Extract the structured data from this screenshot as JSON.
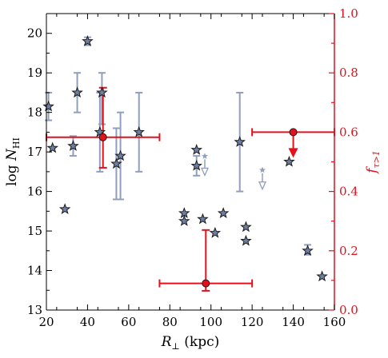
{
  "chart_data": {
    "type": "scatter",
    "xlabel": "R⊥ (kpc)",
    "ylabel_left": "log NHI",
    "ylabel_right": "fτ>1",
    "xlim": [
      20,
      160
    ],
    "ylim_left": [
      13,
      20.5
    ],
    "ylim_right": [
      0.0,
      1.0
    ],
    "x_ticks": [
      "20",
      "40",
      "60",
      "80",
      "100",
      "120",
      "140",
      "160"
    ],
    "y_ticks_left": [
      "13",
      "14",
      "15",
      "16",
      "17",
      "18",
      "19",
      "20"
    ],
    "y_ticks_right": [
      "0.0",
      "0.2",
      "0.4",
      "0.6",
      "0.8",
      "1.0"
    ],
    "colors": {
      "stars": "#8f9fbd",
      "star_fill": "#6f7fa3",
      "fraction": "#e4111d"
    },
    "series": [
      {
        "marker": "star",
        "points": [
          {
            "x": 21,
            "y": 18.15,
            "lo": 17.8,
            "hi": 18.5
          },
          {
            "x": 23,
            "y": 17.1
          },
          {
            "x": 29,
            "y": 15.55
          },
          {
            "x": 33,
            "y": 17.15,
            "lo": 16.9,
            "hi": 17.4
          },
          {
            "x": 35,
            "y": 18.5,
            "lo": 18.0,
            "hi": 19.0
          },
          {
            "x": 40,
            "y": 19.8,
            "lo": 19.7,
            "hi": 19.9
          },
          {
            "x": 46,
            "y": 17.5,
            "lo": 16.5,
            "hi": 18.5
          },
          {
            "x": 47,
            "y": 18.5,
            "lo": 17.7,
            "hi": 19.0
          },
          {
            "x": 54,
            "y": 16.7,
            "lo": 15.8,
            "hi": 17.6
          },
          {
            "x": 56,
            "y": 16.9,
            "lo": 15.8,
            "hi": 18.0
          },
          {
            "x": 65,
            "y": 17.5,
            "lo": 16.5,
            "hi": 18.5
          },
          {
            "x": 87,
            "y": 15.45
          },
          {
            "x": 87,
            "y": 15.25
          },
          {
            "x": 93,
            "y": 17.05
          },
          {
            "x": 93,
            "y": 16.65,
            "lo": 16.4,
            "hi": 16.9
          },
          {
            "x": 96,
            "y": 15.3
          },
          {
            "x": 102,
            "y": 14.95
          },
          {
            "x": 106,
            "y": 15.45
          },
          {
            "x": 114,
            "y": 17.25,
            "lo": 16.0,
            "hi": 18.5
          },
          {
            "x": 117,
            "y": 15.1
          },
          {
            "x": 117,
            "y": 14.75
          },
          {
            "x": 138,
            "y": 16.75
          },
          {
            "x": 147,
            "y": 14.5,
            "lo": 14.4,
            "hi": 14.65
          },
          {
            "x": 154,
            "y": 13.85
          }
        ],
        "upper_limits": [
          {
            "x": 97,
            "y": 16.65
          },
          {
            "x": 125,
            "y": 16.3
          }
        ]
      },
      {
        "marker": "circle",
        "axis": "right",
        "points": [
          {
            "x": 47.5,
            "y": 0.583,
            "xmin": 20,
            "xmax": 75,
            "ylo": 0.48,
            "yhi": 0.75
          },
          {
            "x": 97.5,
            "y": 0.09,
            "xmin": 75,
            "xmax": 120,
            "ylo": 0.065,
            "yhi": 0.27
          },
          {
            "x": 140,
            "y": 0.6,
            "xmin": 120,
            "xmax": 160,
            "upper_limit": true
          }
        ]
      }
    ]
  }
}
